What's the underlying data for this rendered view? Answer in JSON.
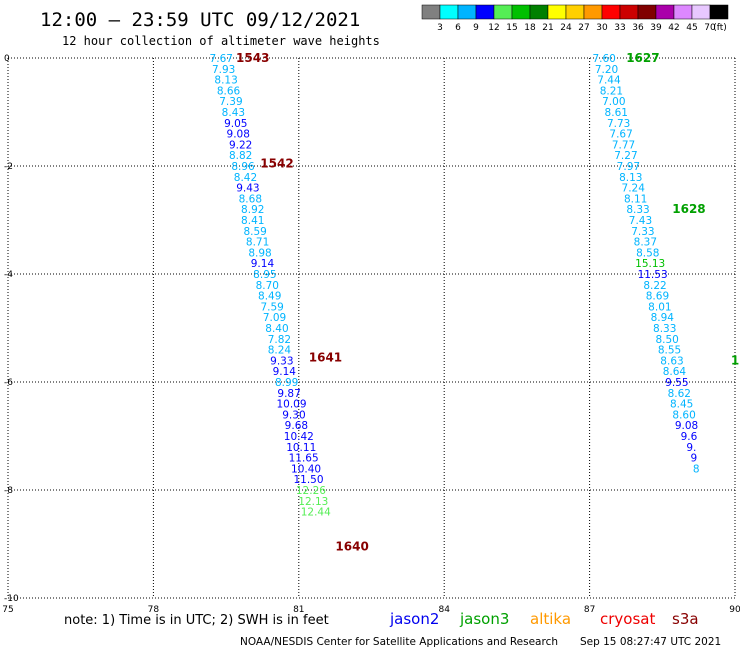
{
  "header": {
    "title": "12:00 – 23:59 UTC 09/12/2021",
    "subtitle": "12 hour collection of altimeter wave heights"
  },
  "colorbar": {
    "labels": [
      "3",
      "6",
      "9",
      "12",
      "15",
      "18",
      "21",
      "24",
      "27",
      "30",
      "33",
      "36",
      "39",
      "42",
      "45",
      "70"
    ],
    "unit": "(ft)",
    "colors": [
      "#808080",
      "#00ffff",
      "#00b4ff",
      "#0000ff",
      "#55ee55",
      "#00c000",
      "#008000",
      "#ffff00",
      "#ffd000",
      "#ff9900",
      "#ff0000",
      "#cc0000",
      "#800000",
      "#aa00aa",
      "#dd88ff",
      "#e8c8ff",
      "#000000"
    ]
  },
  "footer": {
    "note": "note:  1) Time is in UTC;  2) SWH is in feet",
    "satellites": [
      {
        "name": "jason2",
        "color": "#0000ee"
      },
      {
        "name": "jason3",
        "color": "#00a000"
      },
      {
        "name": "altika",
        "color": "#ff9900"
      },
      {
        "name": "cryosat",
        "color": "#ee0000"
      },
      {
        "name": "s3a",
        "color": "#880000"
      }
    ],
    "credit": "NOAA/NESDIS Center for Satellite Applications and Research",
    "timestamp": "Sep 15 08:27:47 UTC 2021"
  },
  "chart_data": {
    "type": "scatter",
    "xlim": [
      75,
      90
    ],
    "ylim": [
      -10,
      0
    ],
    "x_ticks": [
      75,
      78,
      81,
      84,
      87,
      90
    ],
    "y_ticks": [
      0,
      -2,
      -4,
      -6,
      -8,
      -10
    ],
    "grid": true,
    "tracks": [
      {
        "satellite": "s3a",
        "color": "#880000",
        "pass_labels": [
          {
            "text": "1543",
            "lon": 80.05,
            "lat": 0.0
          },
          {
            "text": "1542",
            "lon": 80.55,
            "lat": -1.95
          },
          {
            "text": "1641",
            "lon": 81.55,
            "lat": -5.55
          },
          {
            "text": "1640",
            "lon": 82.1,
            "lat": -9.05
          }
        ],
        "points": [
          {
            "v": "7.67",
            "lon": 79.4,
            "lat": 0.0,
            "c": "#00b4ff"
          },
          {
            "v": "7.93",
            "lon": 79.45,
            "lat": -0.2,
            "c": "#00b4ff"
          },
          {
            "v": "8.13",
            "lon": 79.5,
            "lat": -0.4,
            "c": "#00b4ff"
          },
          {
            "v": "8.66",
            "lon": 79.55,
            "lat": -0.6,
            "c": "#00b4ff"
          },
          {
            "v": "7.39",
            "lon": 79.6,
            "lat": -0.8,
            "c": "#00b4ff"
          },
          {
            "v": "8.43",
            "lon": 79.65,
            "lat": -1.0,
            "c": "#00b4ff"
          },
          {
            "v": "9.05",
            "lon": 79.7,
            "lat": -1.2,
            "c": "#0000ff"
          },
          {
            "v": "9.08",
            "lon": 79.75,
            "lat": -1.4,
            "c": "#0000ff"
          },
          {
            "v": "9.22",
            "lon": 79.8,
            "lat": -1.6,
            "c": "#0000ff"
          },
          {
            "v": "8.82",
            "lon": 79.8,
            "lat": -1.8,
            "c": "#00b4ff"
          },
          {
            "v": "8.96",
            "lon": 79.85,
            "lat": -2.0,
            "c": "#00b4ff"
          },
          {
            "v": "8.42",
            "lon": 79.9,
            "lat": -2.2,
            "c": "#00b4ff"
          },
          {
            "v": "9.43",
            "lon": 79.95,
            "lat": -2.4,
            "c": "#0000ff"
          },
          {
            "v": "8.68",
            "lon": 80.0,
            "lat": -2.6,
            "c": "#00b4ff"
          },
          {
            "v": "8.92",
            "lon": 80.05,
            "lat": -2.8,
            "c": "#00b4ff"
          },
          {
            "v": "8.41",
            "lon": 80.05,
            "lat": -3.0,
            "c": "#00b4ff"
          },
          {
            "v": "8.59",
            "lon": 80.1,
            "lat": -3.2,
            "c": "#00b4ff"
          },
          {
            "v": "8.71",
            "lon": 80.15,
            "lat": -3.4,
            "c": "#00b4ff"
          },
          {
            "v": "8.98",
            "lon": 80.2,
            "lat": -3.6,
            "c": "#00b4ff"
          },
          {
            "v": "9.14",
            "lon": 80.25,
            "lat": -3.8,
            "c": "#0000ff"
          },
          {
            "v": "8.95",
            "lon": 80.3,
            "lat": -4.0,
            "c": "#00b4ff"
          },
          {
            "v": "8.70",
            "lon": 80.35,
            "lat": -4.2,
            "c": "#00b4ff"
          },
          {
            "v": "8.49",
            "lon": 80.4,
            "lat": -4.4,
            "c": "#00b4ff"
          },
          {
            "v": "7.59",
            "lon": 80.45,
            "lat": -4.6,
            "c": "#00b4ff"
          },
          {
            "v": "7.09",
            "lon": 80.5,
            "lat": -4.8,
            "c": "#00b4ff"
          },
          {
            "v": "8.40",
            "lon": 80.55,
            "lat": -5.0,
            "c": "#00b4ff"
          },
          {
            "v": "7.82",
            "lon": 80.6,
            "lat": -5.2,
            "c": "#00b4ff"
          },
          {
            "v": "8.24",
            "lon": 80.6,
            "lat": -5.4,
            "c": "#00b4ff"
          },
          {
            "v": "9.33",
            "lon": 80.65,
            "lat": -5.6,
            "c": "#0000ff"
          },
          {
            "v": "9.14",
            "lon": 80.7,
            "lat": -5.8,
            "c": "#0000ff"
          },
          {
            "v": "8.99",
            "lon": 80.75,
            "lat": -6.0,
            "c": "#00b4ff"
          },
          {
            "v": "9.87",
            "lon": 80.8,
            "lat": -6.2,
            "c": "#0000ff"
          },
          {
            "v": "10.09",
            "lon": 80.85,
            "lat": -6.4,
            "c": "#0000ff"
          },
          {
            "v": "9.30",
            "lon": 80.9,
            "lat": -6.6,
            "c": "#0000ff"
          },
          {
            "v": "9.68",
            "lon": 80.95,
            "lat": -6.8,
            "c": "#0000ff"
          },
          {
            "v": "10.42",
            "lon": 81.0,
            "lat": -7.0,
            "c": "#0000ff"
          },
          {
            "v": "10.11",
            "lon": 81.05,
            "lat": -7.2,
            "c": "#0000ff"
          },
          {
            "v": "11.65",
            "lon": 81.1,
            "lat": -7.4,
            "c": "#0000ff"
          },
          {
            "v": "10.40",
            "lon": 81.15,
            "lat": -7.6,
            "c": "#0000ff"
          },
          {
            "v": "11.50",
            "lon": 81.2,
            "lat": -7.8,
            "c": "#0000ff"
          },
          {
            "v": "12.26",
            "lon": 81.25,
            "lat": -8.0,
            "c": "#55ee55"
          },
          {
            "v": "12.13",
            "lon": 81.3,
            "lat": -8.2,
            "c": "#55ee55"
          },
          {
            "v": "12.44",
            "lon": 81.35,
            "lat": -8.4,
            "c": "#55ee55"
          }
        ]
      },
      {
        "satellite": "jason3",
        "color": "#00a000",
        "pass_labels": [
          {
            "text": "1627",
            "lon": 88.1,
            "lat": 0.0
          },
          {
            "text": "1628",
            "lon": 89.05,
            "lat": -2.8
          },
          {
            "text": "1",
            "lon": 90.0,
            "lat": -5.6
          }
        ],
        "points": [
          {
            "v": "7.60",
            "lon": 87.3,
            "lat": 0.0,
            "c": "#00b4ff"
          },
          {
            "v": "7.20",
            "lon": 87.35,
            "lat": -0.2,
            "c": "#00b4ff"
          },
          {
            "v": "7.44",
            "lon": 87.4,
            "lat": -0.4,
            "c": "#00b4ff"
          },
          {
            "v": "8.21",
            "lon": 87.45,
            "lat": -0.6,
            "c": "#00b4ff"
          },
          {
            "v": "7.00",
            "lon": 87.5,
            "lat": -0.8,
            "c": "#00b4ff"
          },
          {
            "v": "8.61",
            "lon": 87.55,
            "lat": -1.0,
            "c": "#00b4ff"
          },
          {
            "v": "7.73",
            "lon": 87.6,
            "lat": -1.2,
            "c": "#00b4ff"
          },
          {
            "v": "7.67",
            "lon": 87.65,
            "lat": -1.4,
            "c": "#00b4ff"
          },
          {
            "v": "7.77",
            "lon": 87.7,
            "lat": -1.6,
            "c": "#00b4ff"
          },
          {
            "v": "7.27",
            "lon": 87.75,
            "lat": -1.8,
            "c": "#00b4ff"
          },
          {
            "v": "7.97",
            "lon": 87.8,
            "lat": -2.0,
            "c": "#00b4ff"
          },
          {
            "v": "8.13",
            "lon": 87.85,
            "lat": -2.2,
            "c": "#00b4ff"
          },
          {
            "v": "7.24",
            "lon": 87.9,
            "lat": -2.4,
            "c": "#00b4ff"
          },
          {
            "v": "8.11",
            "lon": 87.95,
            "lat": -2.6,
            "c": "#00b4ff"
          },
          {
            "v": "8.33",
            "lon": 88.0,
            "lat": -2.8,
            "c": "#00b4ff"
          },
          {
            "v": "7.43",
            "lon": 88.05,
            "lat": -3.0,
            "c": "#00b4ff"
          },
          {
            "v": "7.33",
            "lon": 88.1,
            "lat": -3.2,
            "c": "#00b4ff"
          },
          {
            "v": "8.37",
            "lon": 88.15,
            "lat": -3.4,
            "c": "#00b4ff"
          },
          {
            "v": "8.58",
            "lon": 88.2,
            "lat": -3.6,
            "c": "#00b4ff"
          },
          {
            "v": "15.13",
            "lon": 88.25,
            "lat": -3.8,
            "c": "#00c000"
          },
          {
            "v": "11.53",
            "lon": 88.3,
            "lat": -4.0,
            "c": "#0000ff"
          },
          {
            "v": "8.22",
            "lon": 88.35,
            "lat": -4.2,
            "c": "#00b4ff"
          },
          {
            "v": "8.69",
            "lon": 88.4,
            "lat": -4.4,
            "c": "#00b4ff"
          },
          {
            "v": "8.01",
            "lon": 88.45,
            "lat": -4.6,
            "c": "#00b4ff"
          },
          {
            "v": "8.94",
            "lon": 88.5,
            "lat": -4.8,
            "c": "#00b4ff"
          },
          {
            "v": "8.33",
            "lon": 88.55,
            "lat": -5.0,
            "c": "#00b4ff"
          },
          {
            "v": "8.50",
            "lon": 88.6,
            "lat": -5.2,
            "c": "#00b4ff"
          },
          {
            "v": "8.55",
            "lon": 88.65,
            "lat": -5.4,
            "c": "#00b4ff"
          },
          {
            "v": "8.63",
            "lon": 88.7,
            "lat": -5.6,
            "c": "#00b4ff"
          },
          {
            "v": "8.64",
            "lon": 88.75,
            "lat": -5.8,
            "c": "#00b4ff"
          },
          {
            "v": "9.55",
            "lon": 88.8,
            "lat": -6.0,
            "c": "#0000ff"
          },
          {
            "v": "8.62",
            "lon": 88.85,
            "lat": -6.2,
            "c": "#00b4ff"
          },
          {
            "v": "8.45",
            "lon": 88.9,
            "lat": -6.4,
            "c": "#00b4ff"
          },
          {
            "v": "8.60",
            "lon": 88.95,
            "lat": -6.6,
            "c": "#00b4ff"
          },
          {
            "v": "9.08",
            "lon": 89.0,
            "lat": -6.8,
            "c": "#0000ff"
          },
          {
            "v": "9.6",
            "lon": 89.05,
            "lat": -7.0,
            "c": "#0000ff"
          },
          {
            "v": "9.",
            "lon": 89.1,
            "lat": -7.2,
            "c": "#0000ff"
          },
          {
            "v": "9",
            "lon": 89.15,
            "lat": -7.4,
            "c": "#0000ff"
          },
          {
            "v": "8",
            "lon": 89.2,
            "lat": -7.6,
            "c": "#00b4ff"
          }
        ]
      }
    ]
  }
}
